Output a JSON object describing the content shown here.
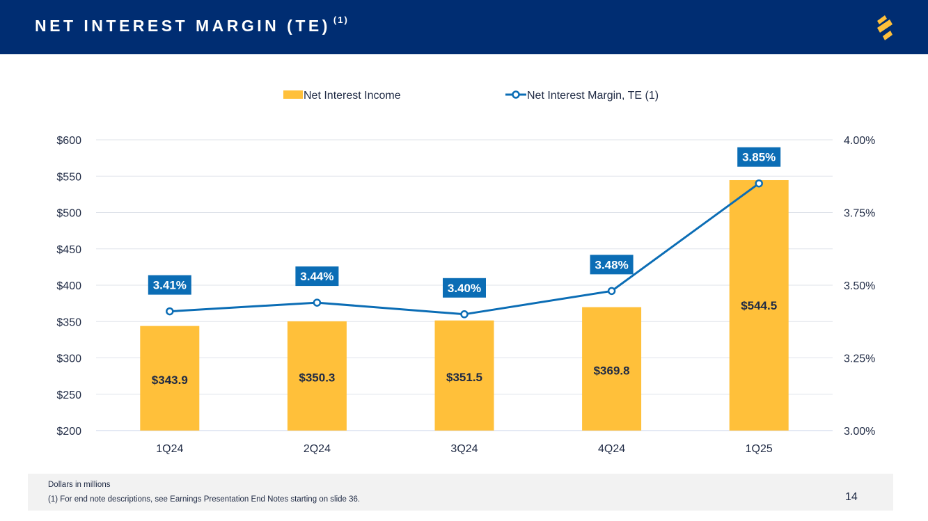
{
  "header": {
    "title": "NET INTEREST MARGIN (TE)",
    "title_sup": "(1)",
    "logo_icon": "brand-s-logo-icon"
  },
  "colors": {
    "header_bg": "#002d72",
    "bar": "#ffc03a",
    "line": "#0b6db5",
    "label_bg": "#0b6db5",
    "axis_text": "#1f2a44",
    "logo": "#ffc03a"
  },
  "chart_data": {
    "type": "bar",
    "categories": [
      "1Q24",
      "2Q24",
      "3Q24",
      "4Q24",
      "1Q25"
    ],
    "series": [
      {
        "name": "Net Interest Income",
        "type": "bar",
        "axis": "left",
        "values": [
          343.9,
          350.3,
          351.5,
          369.8,
          544.5
        ],
        "labels": [
          "$343.9",
          "$350.3",
          "$351.5",
          "$369.8",
          "$544.5"
        ]
      },
      {
        "name": "Net Interest Margin, TE (1)",
        "type": "line",
        "axis": "right",
        "values": [
          3.41,
          3.44,
          3.4,
          3.48,
          3.85
        ],
        "labels": [
          "3.41%",
          "3.44%",
          "3.40%",
          "3.48%",
          "3.85%"
        ]
      }
    ],
    "ylim": [
      200,
      600
    ],
    "yticks": [
      "$200",
      "$250",
      "$300",
      "$350",
      "$400",
      "$450",
      "$500",
      "$550",
      "$600"
    ],
    "y2lim": [
      3.0,
      4.0
    ],
    "y2ticks": [
      "3.00%",
      "3.25%",
      "3.50%",
      "3.75%",
      "4.00%"
    ],
    "grid": true,
    "legend": "top-center"
  },
  "footer": {
    "note1": "Dollars in millions",
    "note2": "(1)  For end note descriptions, see Earnings Presentation End Notes starting on slide 36.",
    "page": "14"
  }
}
